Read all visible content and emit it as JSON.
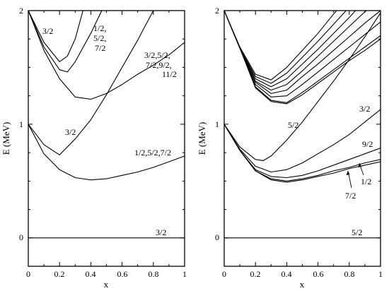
{
  "chart_data": [
    {
      "type": "line",
      "xlabel": "x",
      "ylabel": "E (MeV)",
      "xlim": [
        0,
        1
      ],
      "ylim": [
        -0.25,
        2
      ],
      "xticks": [
        "0",
        "0.2",
        "0.4",
        "0.6",
        "0.8",
        "1"
      ],
      "yticks": [
        "0",
        "1",
        "2"
      ],
      "series": [
        {
          "values": [
            [
              0,
              0
            ],
            [
              1,
              0
            ]
          ]
        },
        {
          "values": [
            [
              0,
              1
            ],
            [
              0.1,
              0.82
            ],
            [
              0.2,
              0.73
            ],
            [
              0.3,
              0.87
            ],
            [
              0.4,
              1.04
            ],
            [
              0.5,
              1.26
            ],
            [
              0.6,
              1.5
            ],
            [
              0.7,
              1.74
            ],
            [
              0.8,
              2.0
            ]
          ]
        },
        {
          "values": [
            [
              0,
              1
            ],
            [
              0.1,
              0.74
            ],
            [
              0.2,
              0.6
            ],
            [
              0.3,
              0.53
            ],
            [
              0.4,
              0.51
            ],
            [
              0.5,
              0.52
            ],
            [
              0.6,
              0.55
            ],
            [
              0.7,
              0.58
            ],
            [
              0.8,
              0.62
            ],
            [
              0.9,
              0.67
            ],
            [
              1,
              0.72
            ]
          ]
        },
        {
          "values": [
            [
              0,
              2
            ],
            [
              0.1,
              1.72
            ],
            [
              0.2,
              1.55
            ],
            [
              0.25,
              1.6
            ],
            [
              0.3,
              1.75
            ],
            [
              0.35,
              2.0
            ]
          ]
        },
        {
          "values": [
            [
              0,
              2
            ],
            [
              0.1,
              1.68
            ],
            [
              0.2,
              1.48
            ],
            [
              0.25,
              1.46
            ],
            [
              0.3,
              1.55
            ],
            [
              0.4,
              1.8
            ],
            [
              0.47,
              2.0
            ]
          ]
        },
        {
          "values": [
            [
              0,
              2
            ],
            [
              0.1,
              1.65
            ],
            [
              0.2,
              1.4
            ],
            [
              0.3,
              1.24
            ],
            [
              0.4,
              1.22
            ],
            [
              0.5,
              1.27
            ],
            [
              0.6,
              1.35
            ],
            [
              0.7,
              1.44
            ],
            [
              0.8,
              1.52
            ],
            [
              0.9,
              1.61
            ],
            [
              1,
              1.72
            ]
          ]
        }
      ],
      "annotations": [
        "3/2",
        "1/2,",
        "5/2,",
        "7/2",
        "3/2,5/2,",
        "7/2,9/2,",
        "11/2",
        "3/2",
        "1/2,5/2,7/2",
        "3/2"
      ]
    },
    {
      "type": "line",
      "xlabel": "x",
      "ylabel": "E (MeV)",
      "xlim": [
        0,
        1
      ],
      "ylim": [
        -0.25,
        2
      ],
      "xticks": [
        "0",
        "0.2",
        "0.4",
        "0.6",
        "0.8",
        "1"
      ],
      "yticks": [
        "0",
        "1",
        "2"
      ],
      "series": [
        {
          "values": [
            [
              0,
              0
            ],
            [
              1,
              0
            ]
          ]
        },
        {
          "values": [
            [
              0,
              1
            ],
            [
              0.1,
              0.8
            ],
            [
              0.2,
              0.69
            ],
            [
              0.25,
              0.68
            ],
            [
              0.3,
              0.72
            ],
            [
              0.4,
              0.86
            ],
            [
              0.5,
              1.02
            ],
            [
              0.6,
              1.2
            ],
            [
              0.7,
              1.38
            ],
            [
              0.8,
              1.57
            ],
            [
              0.9,
              1.77
            ],
            [
              1,
              1.98
            ]
          ]
        },
        {
          "values": [
            [
              0,
              1
            ],
            [
              0.1,
              0.78
            ],
            [
              0.2,
              0.63
            ],
            [
              0.3,
              0.58
            ],
            [
              0.4,
              0.6
            ],
            [
              0.5,
              0.66
            ],
            [
              0.6,
              0.74
            ],
            [
              0.7,
              0.82
            ],
            [
              0.8,
              0.91
            ],
            [
              0.9,
              1.02
            ],
            [
              1,
              1.13
            ]
          ]
        },
        {
          "values": [
            [
              0,
              1
            ],
            [
              0.1,
              0.77
            ],
            [
              0.2,
              0.6
            ],
            [
              0.3,
              0.54
            ],
            [
              0.4,
              0.53
            ],
            [
              0.5,
              0.55
            ],
            [
              0.6,
              0.59
            ],
            [
              0.7,
              0.64
            ],
            [
              0.8,
              0.69
            ],
            [
              0.9,
              0.74
            ],
            [
              1,
              0.79
            ]
          ]
        },
        {
          "values": [
            [
              0,
              1
            ],
            [
              0.1,
              0.77
            ],
            [
              0.2,
              0.59
            ],
            [
              0.3,
              0.52
            ],
            [
              0.4,
              0.5
            ],
            [
              0.5,
              0.52
            ],
            [
              0.6,
              0.55
            ],
            [
              0.7,
              0.59
            ],
            [
              0.8,
              0.62
            ],
            [
              0.9,
              0.66
            ],
            [
              1,
              0.69
            ]
          ]
        },
        {
          "values": [
            [
              0,
              1
            ],
            [
              0.1,
              0.77
            ],
            [
              0.2,
              0.59
            ],
            [
              0.3,
              0.51
            ],
            [
              0.4,
              0.49
            ],
            [
              0.5,
              0.51
            ],
            [
              0.6,
              0.54
            ],
            [
              0.7,
              0.57
            ],
            [
              0.8,
              0.61
            ],
            [
              0.9,
              0.64
            ],
            [
              1,
              0.67
            ]
          ]
        },
        {
          "values": [
            [
              0,
              2
            ],
            [
              0.1,
              1.68
            ],
            [
              0.2,
              1.44
            ],
            [
              0.3,
              1.39
            ],
            [
              0.4,
              1.5
            ],
            [
              0.5,
              1.65
            ],
            [
              0.6,
              1.8
            ],
            [
              0.7,
              1.97
            ],
            [
              0.72,
              2.0
            ]
          ]
        },
        {
          "values": [
            [
              0,
              2
            ],
            [
              0.1,
              1.67
            ],
            [
              0.2,
              1.42
            ],
            [
              0.3,
              1.36
            ],
            [
              0.4,
              1.45
            ],
            [
              0.5,
              1.59
            ],
            [
              0.6,
              1.73
            ],
            [
              0.7,
              1.88
            ],
            [
              0.78,
              2.0
            ]
          ]
        },
        {
          "values": [
            [
              0,
              2
            ],
            [
              0.1,
              1.67
            ],
            [
              0.2,
              1.4
            ],
            [
              0.3,
              1.33
            ],
            [
              0.4,
              1.4
            ],
            [
              0.5,
              1.53
            ],
            [
              0.6,
              1.66
            ],
            [
              0.7,
              1.8
            ],
            [
              0.8,
              1.94
            ],
            [
              0.84,
              2.0
            ]
          ]
        },
        {
          "values": [
            [
              0,
              2
            ],
            [
              0.1,
              1.67
            ],
            [
              0.2,
              1.38
            ],
            [
              0.3,
              1.3
            ],
            [
              0.4,
              1.35
            ],
            [
              0.5,
              1.47
            ],
            [
              0.6,
              1.6
            ],
            [
              0.7,
              1.73
            ],
            [
              0.8,
              1.86
            ],
            [
              0.9,
              1.99
            ],
            [
              0.91,
              2.0
            ]
          ]
        },
        {
          "values": [
            [
              0,
              2
            ],
            [
              0.1,
              1.67
            ],
            [
              0.2,
              1.37
            ],
            [
              0.3,
              1.27
            ],
            [
              0.4,
              1.3
            ],
            [
              0.5,
              1.42
            ],
            [
              0.6,
              1.53
            ],
            [
              0.7,
              1.65
            ],
            [
              0.8,
              1.77
            ],
            [
              0.9,
              1.89
            ],
            [
              1,
              2.0
            ]
          ]
        },
        {
          "values": [
            [
              0,
              2
            ],
            [
              0.1,
              1.67
            ],
            [
              0.2,
              1.35
            ],
            [
              0.3,
              1.24
            ],
            [
              0.4,
              1.25
            ],
            [
              0.5,
              1.35
            ],
            [
              0.6,
              1.46
            ],
            [
              0.7,
              1.57
            ],
            [
              0.8,
              1.68
            ],
            [
              0.9,
              1.79
            ],
            [
              1,
              1.9
            ]
          ]
        },
        {
          "values": [
            [
              0,
              2
            ],
            [
              0.1,
              1.67
            ],
            [
              0.2,
              1.33
            ],
            [
              0.3,
              1.21
            ],
            [
              0.4,
              1.19
            ],
            [
              0.5,
              1.28
            ],
            [
              0.6,
              1.38
            ],
            [
              0.7,
              1.48
            ],
            [
              0.8,
              1.58
            ],
            [
              0.9,
              1.68
            ],
            [
              1,
              1.78
            ]
          ]
        },
        {
          "values": [
            [
              0,
              2
            ],
            [
              0.1,
              1.67
            ],
            [
              0.2,
              1.32
            ],
            [
              0.3,
              1.2
            ],
            [
              0.4,
              1.18
            ],
            [
              0.5,
              1.26
            ],
            [
              0.6,
              1.36
            ],
            [
              0.7,
              1.46
            ],
            [
              0.8,
              1.56
            ],
            [
              0.9,
              1.65
            ],
            [
              1,
              1.75
            ]
          ]
        }
      ],
      "annotations": [
        "5/2",
        "3/2",
        "9/2",
        "1/2",
        "7/2",
        "5/2"
      ]
    }
  ]
}
